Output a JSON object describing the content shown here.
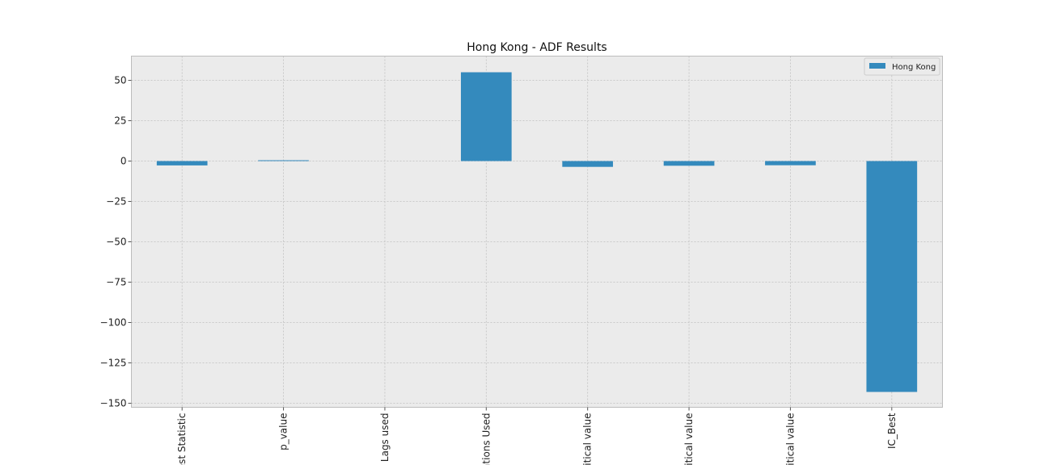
{
  "chart_data": {
    "type": "bar",
    "title": "Hong Kong - ADF Results",
    "xlabel": "",
    "ylabel": "",
    "categories": [
      "est Statistic",
      "p_value",
      "Lags used",
      "ations Used",
      "ritical value",
      "ritical value",
      "ritical value",
      "IC_Best"
    ],
    "series": [
      {
        "name": "Hong Kong",
        "values": [
          -2.7,
          0.5,
          0,
          55,
          -3.6,
          -2.9,
          -2.6,
          -143
        ],
        "color": "#348abd"
      }
    ],
    "ylim": [
      -152.5,
      65
    ],
    "yticks": [
      50,
      25,
      0,
      -25,
      -50,
      -75,
      -100,
      -125,
      -150
    ],
    "ytick_labels": [
      "50",
      "25",
      "0",
      "−25",
      "−50",
      "−75",
      "−100",
      "−125",
      "−150"
    ],
    "grid": true,
    "legend_position": "top-right",
    "background_color": "#ebebeb",
    "grid_color": "#c0c0c0"
  }
}
